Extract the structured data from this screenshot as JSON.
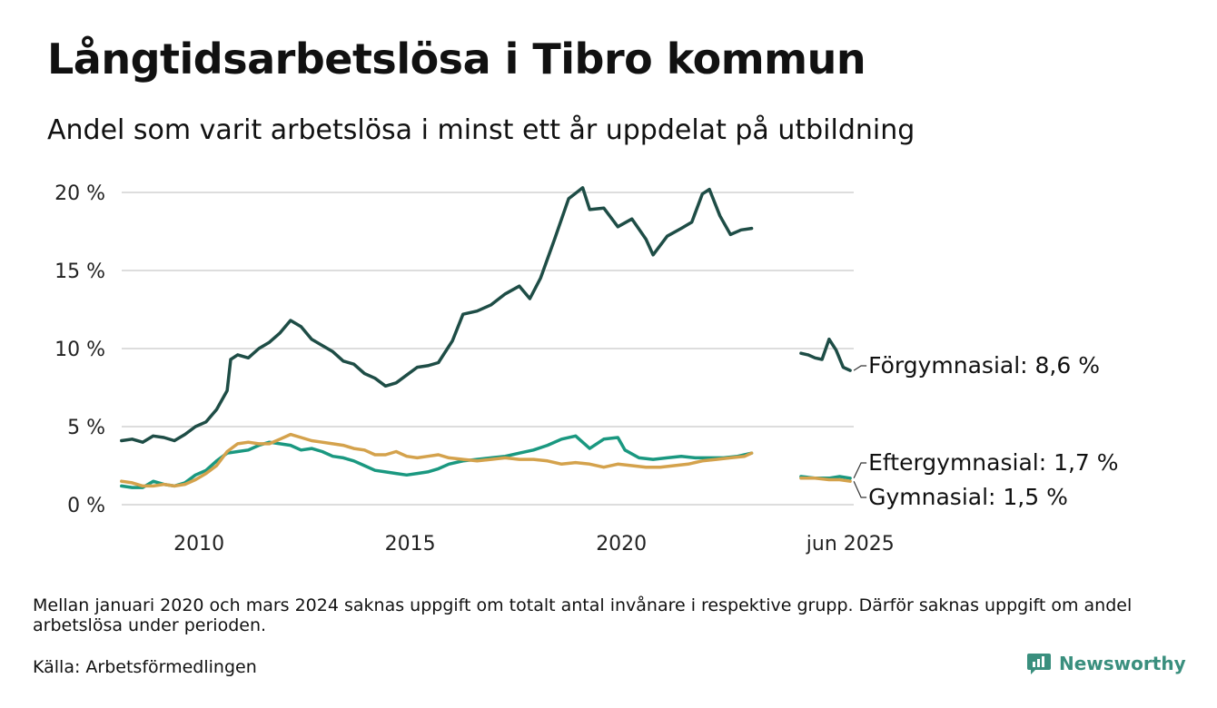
{
  "title": "Långtidsarbetslösa i Tibro kommun",
  "subtitle": "Andel som varit arbetslösa i minst ett år uppdelat på utbildning",
  "note": "Mellan januari 2020 och mars 2024 saknas uppgift om totalt antal invånare i respektive grupp. Därför saknas uppgift om andel arbetslösa under perioden.",
  "source": "Källa: Arbetsförmedlingen",
  "brand": {
    "name": "Newsworthy",
    "icon": "newsworthy-logo-icon",
    "color": "#3a8f7e"
  },
  "colors": {
    "forgymnasial": "#1e4d46",
    "eftergymnasial": "#1a9880",
    "gymnasial": "#d4a24c",
    "grid": "#dddddd"
  },
  "chart_data": {
    "type": "line",
    "title": "Långtidsarbetslösa i Tibro kommun",
    "xlabel": "",
    "ylabel": "",
    "ylim": [
      0,
      20
    ],
    "y_ticks": [
      0,
      5,
      10,
      15,
      20
    ],
    "y_tick_labels": [
      "0 %",
      "5 %",
      "10 %",
      "15 %",
      "20 %"
    ],
    "x_tick_labels": [
      "2010",
      "2015",
      "2020",
      "jun 2025"
    ],
    "grid": true,
    "legend": "end-of-line labels (right)",
    "series": [
      {
        "name": "Förgymnasial",
        "end_label": "Förgymnasial: 8,6 %",
        "color": "#1e4d46",
        "segments": [
          [
            [
              "2008-03",
              4.1
            ],
            [
              "2008-06",
              4.2
            ],
            [
              "2008-09",
              4.0
            ],
            [
              "2008-12",
              4.4
            ],
            [
              "2009-03",
              4.3
            ],
            [
              "2009-06",
              4.1
            ],
            [
              "2009-09",
              4.5
            ],
            [
              "2009-12",
              5.0
            ],
            [
              "2010-03",
              5.3
            ],
            [
              "2010-06",
              6.1
            ],
            [
              "2010-09",
              7.3
            ],
            [
              "2010-10",
              9.3
            ],
            [
              "2010-12",
              9.6
            ],
            [
              "2011-03",
              9.4
            ],
            [
              "2011-06",
              10.0
            ],
            [
              "2011-09",
              10.4
            ],
            [
              "2011-12",
              11.0
            ],
            [
              "2012-03",
              11.8
            ],
            [
              "2012-06",
              11.4
            ],
            [
              "2012-09",
              10.6
            ],
            [
              "2012-12",
              10.2
            ],
            [
              "2013-03",
              9.8
            ],
            [
              "2013-06",
              9.2
            ],
            [
              "2013-09",
              9.0
            ],
            [
              "2013-12",
              8.4
            ],
            [
              "2014-03",
              8.1
            ],
            [
              "2014-06",
              7.6
            ],
            [
              "2014-09",
              7.8
            ],
            [
              "2014-12",
              8.3
            ],
            [
              "2015-03",
              8.8
            ],
            [
              "2015-06",
              8.9
            ],
            [
              "2015-09",
              9.1
            ],
            [
              "2016-01",
              10.5
            ],
            [
              "2016-04",
              12.2
            ],
            [
              "2016-08",
              12.4
            ],
            [
              "2016-12",
              12.8
            ],
            [
              "2017-04",
              13.5
            ],
            [
              "2017-08",
              14.0
            ],
            [
              "2017-11",
              13.2
            ],
            [
              "2018-02",
              14.5
            ],
            [
              "2018-06",
              17.0
            ],
            [
              "2018-10",
              19.6
            ],
            [
              "2019-02",
              20.3
            ],
            [
              "2019-04",
              18.9
            ],
            [
              "2019-08",
              19.0
            ],
            [
              "2019-12",
              17.8
            ],
            [
              "2020-04",
              18.3
            ],
            [
              "2020-08",
              17.0
            ],
            [
              "2020-10",
              16.0
            ],
            [
              "2021-02",
              17.2
            ],
            [
              "2021-06",
              17.7
            ],
            [
              "2021-09",
              18.1
            ],
            [
              "2021-12",
              19.9
            ],
            [
              "2022-02",
              20.2
            ],
            [
              "2022-05",
              18.5
            ],
            [
              "2022-08",
              17.3
            ],
            [
              "2022-11",
              17.6
            ],
            [
              "2023-02",
              17.7
            ]
          ],
          [
            [
              "2024-04",
              9.7
            ],
            [
              "2024-06",
              9.6
            ],
            [
              "2024-08",
              9.4
            ],
            [
              "2024-10",
              9.3
            ],
            [
              "2024-12",
              10.6
            ],
            [
              "2025-02",
              9.9
            ],
            [
              "2025-04",
              8.8
            ],
            [
              "2025-06",
              8.6
            ]
          ]
        ]
      },
      {
        "name": "Eftergymnasial",
        "end_label": "Eftergymnasial: 1,7 %",
        "color": "#1a9880",
        "segments": [
          [
            [
              "2008-03",
              1.2
            ],
            [
              "2008-06",
              1.1
            ],
            [
              "2008-09",
              1.1
            ],
            [
              "2008-12",
              1.5
            ],
            [
              "2009-03",
              1.3
            ],
            [
              "2009-06",
              1.2
            ],
            [
              "2009-09",
              1.4
            ],
            [
              "2009-12",
              1.9
            ],
            [
              "2010-03",
              2.2
            ],
            [
              "2010-06",
              2.8
            ],
            [
              "2010-09",
              3.3
            ],
            [
              "2010-12",
              3.4
            ],
            [
              "2011-03",
              3.5
            ],
            [
              "2011-06",
              3.8
            ],
            [
              "2011-09",
              4.0
            ],
            [
              "2011-12",
              3.9
            ],
            [
              "2012-03",
              3.8
            ],
            [
              "2012-06",
              3.5
            ],
            [
              "2012-09",
              3.6
            ],
            [
              "2012-12",
              3.4
            ],
            [
              "2013-03",
              3.1
            ],
            [
              "2013-06",
              3.0
            ],
            [
              "2013-09",
              2.8
            ],
            [
              "2013-12",
              2.5
            ],
            [
              "2014-03",
              2.2
            ],
            [
              "2014-06",
              2.1
            ],
            [
              "2014-09",
              2.0
            ],
            [
              "2014-12",
              1.9
            ],
            [
              "2015-03",
              2.0
            ],
            [
              "2015-06",
              2.1
            ],
            [
              "2015-09",
              2.3
            ],
            [
              "2015-12",
              2.6
            ],
            [
              "2016-04",
              2.8
            ],
            [
              "2016-08",
              2.9
            ],
            [
              "2016-12",
              3.0
            ],
            [
              "2017-04",
              3.1
            ],
            [
              "2017-08",
              3.3
            ],
            [
              "2017-12",
              3.5
            ],
            [
              "2018-04",
              3.8
            ],
            [
              "2018-08",
              4.2
            ],
            [
              "2018-12",
              4.4
            ],
            [
              "2019-04",
              3.6
            ],
            [
              "2019-08",
              4.2
            ],
            [
              "2019-12",
              4.3
            ],
            [
              "2020-02",
              3.5
            ],
            [
              "2020-06",
              3.0
            ],
            [
              "2020-10",
              2.9
            ],
            [
              "2021-02",
              3.0
            ],
            [
              "2021-06",
              3.1
            ],
            [
              "2021-10",
              3.0
            ],
            [
              "2022-02",
              3.0
            ],
            [
              "2022-06",
              3.0
            ],
            [
              "2022-10",
              3.1
            ],
            [
              "2023-02",
              3.3
            ]
          ],
          [
            [
              "2024-04",
              1.8
            ],
            [
              "2024-08",
              1.7
            ],
            [
              "2024-12",
              1.7
            ],
            [
              "2025-03",
              1.8
            ],
            [
              "2025-06",
              1.7
            ]
          ]
        ]
      },
      {
        "name": "Gymnasial",
        "end_label": "Gymnasial: 1,5 %",
        "color": "#d4a24c",
        "segments": [
          [
            [
              "2008-03",
              1.5
            ],
            [
              "2008-06",
              1.4
            ],
            [
              "2008-09",
              1.2
            ],
            [
              "2008-12",
              1.2
            ],
            [
              "2009-03",
              1.3
            ],
            [
              "2009-06",
              1.2
            ],
            [
              "2009-09",
              1.3
            ],
            [
              "2009-12",
              1.6
            ],
            [
              "2010-03",
              2.0
            ],
            [
              "2010-06",
              2.5
            ],
            [
              "2010-09",
              3.4
            ],
            [
              "2010-12",
              3.9
            ],
            [
              "2011-03",
              4.0
            ],
            [
              "2011-06",
              3.9
            ],
            [
              "2011-09",
              3.9
            ],
            [
              "2011-12",
              4.2
            ],
            [
              "2012-03",
              4.5
            ],
            [
              "2012-06",
              4.3
            ],
            [
              "2012-09",
              4.1
            ],
            [
              "2012-12",
              4.0
            ],
            [
              "2013-03",
              3.9
            ],
            [
              "2013-06",
              3.8
            ],
            [
              "2013-09",
              3.6
            ],
            [
              "2013-12",
              3.5
            ],
            [
              "2014-03",
              3.2
            ],
            [
              "2014-06",
              3.2
            ],
            [
              "2014-09",
              3.4
            ],
            [
              "2014-12",
              3.1
            ],
            [
              "2015-03",
              3.0
            ],
            [
              "2015-06",
              3.1
            ],
            [
              "2015-09",
              3.2
            ],
            [
              "2015-12",
              3.0
            ],
            [
              "2016-04",
              2.9
            ],
            [
              "2016-08",
              2.8
            ],
            [
              "2016-12",
              2.9
            ],
            [
              "2017-04",
              3.0
            ],
            [
              "2017-08",
              2.9
            ],
            [
              "2017-12",
              2.9
            ],
            [
              "2018-04",
              2.8
            ],
            [
              "2018-08",
              2.6
            ],
            [
              "2018-12",
              2.7
            ],
            [
              "2019-04",
              2.6
            ],
            [
              "2019-08",
              2.4
            ],
            [
              "2019-12",
              2.6
            ],
            [
              "2020-04",
              2.5
            ],
            [
              "2020-08",
              2.4
            ],
            [
              "2020-12",
              2.4
            ],
            [
              "2021-04",
              2.5
            ],
            [
              "2021-08",
              2.6
            ],
            [
              "2021-12",
              2.8
            ],
            [
              "2022-04",
              2.9
            ],
            [
              "2022-08",
              3.0
            ],
            [
              "2022-12",
              3.1
            ],
            [
              "2023-02",
              3.3
            ]
          ],
          [
            [
              "2024-04",
              1.7
            ],
            [
              "2024-08",
              1.7
            ],
            [
              "2024-12",
              1.6
            ],
            [
              "2025-03",
              1.6
            ],
            [
              "2025-06",
              1.5
            ]
          ]
        ]
      }
    ]
  }
}
